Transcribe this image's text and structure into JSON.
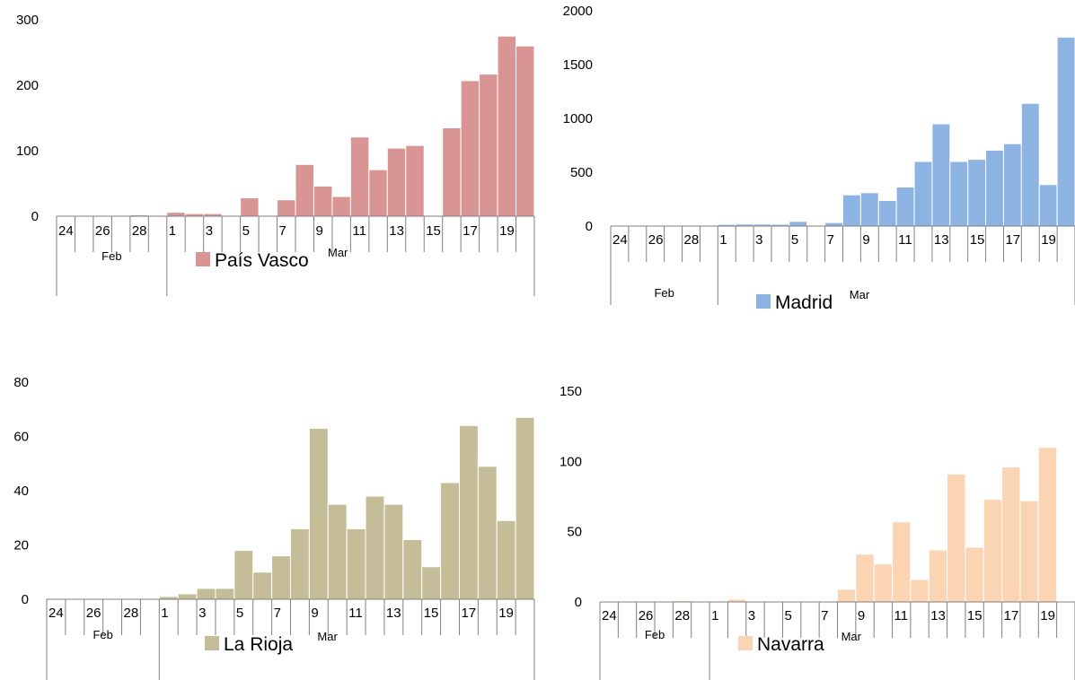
{
  "categories": [
    "24",
    "25",
    "26",
    "27",
    "28",
    "29",
    "1",
    "2",
    "3",
    "4",
    "5",
    "6",
    "7",
    "8",
    "9",
    "10",
    "11",
    "12",
    "13",
    "14",
    "15",
    "16",
    "17",
    "18",
    "19",
    "20"
  ],
  "tick_labels": [
    "24",
    "26",
    "28",
    "1",
    "3",
    "5",
    "7",
    "9",
    "11",
    "13",
    "15",
    "17",
    "19"
  ],
  "month_labels": [
    "Feb",
    "Mar"
  ],
  "chart_data": [
    {
      "type": "bar",
      "series": [
        {
          "name": "País Vasco",
          "values": [
            0,
            0,
            0,
            0,
            2,
            0,
            6,
            4,
            4,
            0,
            28,
            0,
            25,
            79,
            46,
            30,
            121,
            71,
            104,
            108,
            0,
            135,
            207,
            217,
            275,
            260
          ]
        }
      ],
      "ylim": [
        0,
        300
      ],
      "yticks": [
        0,
        100,
        200,
        300
      ],
      "color": "#d99594"
    },
    {
      "type": "bar",
      "series": [
        {
          "name": "Madrid",
          "values": [
            0,
            0,
            0,
            0,
            0,
            0,
            15,
            18,
            18,
            17,
            43,
            0,
            32,
            290,
            310,
            237,
            363,
            600,
            950,
            600,
            620,
            705,
            765,
            1140,
            385,
            1755
          ]
        }
      ],
      "ylim": [
        0,
        2000
      ],
      "yticks": [
        0,
        500,
        1000,
        1500,
        2000
      ],
      "color": "#8db3e2"
    },
    {
      "type": "bar",
      "series": [
        {
          "name": "La Rioja",
          "values": [
            0,
            0,
            0,
            0,
            0,
            0,
            1,
            2,
            4,
            4,
            18,
            10,
            16,
            26,
            63,
            35,
            26,
            38,
            35,
            22,
            12,
            43,
            64,
            49,
            29,
            67
          ]
        }
      ],
      "ylim": [
        0,
        80
      ],
      "yticks": [
        0,
        20,
        40,
        60,
        80
      ],
      "color": "#c4bd97"
    },
    {
      "type": "bar",
      "series": [
        {
          "name": "Navarra",
          "values": [
            0,
            0,
            0,
            0,
            1,
            0,
            0,
            2,
            0,
            0,
            0,
            0,
            0,
            9,
            34,
            27,
            57,
            16,
            37,
            91,
            39,
            73,
            96,
            72,
            110,
            0
          ]
        }
      ],
      "ylim": [
        0,
        150
      ],
      "yticks": [
        0,
        50,
        100,
        150
      ],
      "color": "#fbd4b4"
    }
  ]
}
